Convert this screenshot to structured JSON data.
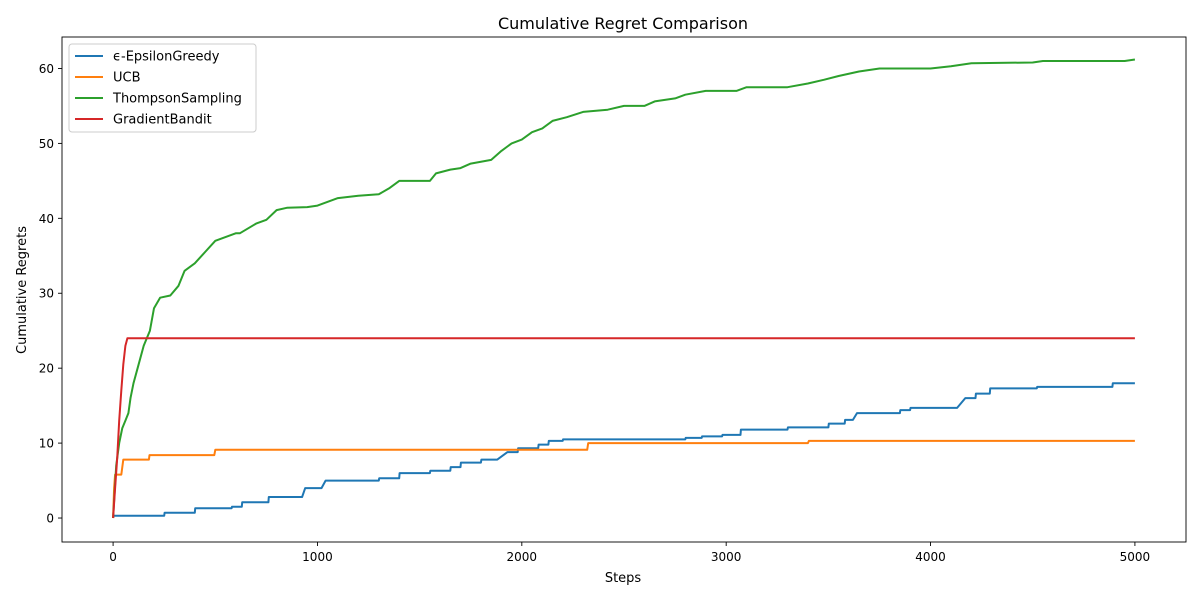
{
  "chart_data": {
    "type": "line",
    "title": "Cumulative Regret Comparison",
    "xlabel": "Steps",
    "ylabel": "Cumulative Regrets",
    "xlim": [
      -250,
      5250
    ],
    "ylim": [
      -3.2,
      64.2
    ],
    "xticks": [
      0,
      1000,
      2000,
      3000,
      4000,
      5000
    ],
    "yticks": [
      0,
      10,
      20,
      30,
      40,
      50,
      60
    ],
    "grid": false,
    "legend": "top-left",
    "series": [
      {
        "name": "ϵ-EpsilonGreedy",
        "color": "#1f77b4",
        "points": [
          [
            0,
            0
          ],
          [
            2,
            0.3
          ],
          [
            250,
            0.3
          ],
          [
            252,
            0.7
          ],
          [
            400,
            0.7
          ],
          [
            402,
            1.3
          ],
          [
            580,
            1.3
          ],
          [
            582,
            1.5
          ],
          [
            630,
            1.5
          ],
          [
            632,
            2.1
          ],
          [
            760,
            2.1
          ],
          [
            762,
            2.8
          ],
          [
            925,
            2.8
          ],
          [
            940,
            4.0
          ],
          [
            1020,
            4.0
          ],
          [
            1040,
            5.0
          ],
          [
            1300,
            5.0
          ],
          [
            1302,
            5.3
          ],
          [
            1400,
            5.3
          ],
          [
            1402,
            6.0
          ],
          [
            1550,
            6.0
          ],
          [
            1552,
            6.3
          ],
          [
            1650,
            6.3
          ],
          [
            1652,
            6.8
          ],
          [
            1700,
            6.8
          ],
          [
            1702,
            7.4
          ],
          [
            1800,
            7.4
          ],
          [
            1802,
            7.8
          ],
          [
            1880,
            7.8
          ],
          [
            1930,
            8.8
          ],
          [
            1980,
            8.8
          ],
          [
            1982,
            9.3
          ],
          [
            2080,
            9.3
          ],
          [
            2082,
            9.8
          ],
          [
            2130,
            9.8
          ],
          [
            2132,
            10.3
          ],
          [
            2200,
            10.3
          ],
          [
            2202,
            10.5
          ],
          [
            2800,
            10.5
          ],
          [
            2802,
            10.7
          ],
          [
            2880,
            10.7
          ],
          [
            2882,
            10.9
          ],
          [
            2980,
            10.9
          ],
          [
            2982,
            11.1
          ],
          [
            3070,
            11.1
          ],
          [
            3072,
            11.8
          ],
          [
            3300,
            11.8
          ],
          [
            3302,
            12.1
          ],
          [
            3500,
            12.1
          ],
          [
            3502,
            12.6
          ],
          [
            3580,
            12.6
          ],
          [
            3582,
            13.1
          ],
          [
            3620,
            13.1
          ],
          [
            3640,
            14.0
          ],
          [
            3850,
            14.0
          ],
          [
            3852,
            14.4
          ],
          [
            3900,
            14.4
          ],
          [
            3902,
            14.7
          ],
          [
            4130,
            14.7
          ],
          [
            4170,
            16.0
          ],
          [
            4220,
            16.0
          ],
          [
            4222,
            16.6
          ],
          [
            4290,
            16.6
          ],
          [
            4292,
            17.3
          ],
          [
            4520,
            17.3
          ],
          [
            4522,
            17.5
          ],
          [
            4890,
            17.5
          ],
          [
            4892,
            18.0
          ],
          [
            5000,
            18.0
          ]
        ]
      },
      {
        "name": "UCB",
        "color": "#ff7f0e",
        "points": [
          [
            0,
            0
          ],
          [
            5,
            4.0
          ],
          [
            10,
            5.8
          ],
          [
            40,
            5.8
          ],
          [
            50,
            7.8
          ],
          [
            175,
            7.8
          ],
          [
            178,
            8.4
          ],
          [
            495,
            8.4
          ],
          [
            500,
            9.1
          ],
          [
            2320,
            9.1
          ],
          [
            2325,
            10.0
          ],
          [
            3400,
            10.0
          ],
          [
            3405,
            10.3
          ],
          [
            5000,
            10.3
          ]
        ]
      },
      {
        "name": "ThompsonSampling",
        "color": "#2ca02c",
        "points": [
          [
            0,
            0
          ],
          [
            15,
            7
          ],
          [
            30,
            10
          ],
          [
            45,
            12
          ],
          [
            60,
            13
          ],
          [
            75,
            14
          ],
          [
            85,
            16
          ],
          [
            100,
            18
          ],
          [
            120,
            20
          ],
          [
            150,
            23
          ],
          [
            180,
            25
          ],
          [
            200,
            28
          ],
          [
            230,
            29.4
          ],
          [
            280,
            29.7
          ],
          [
            320,
            31
          ],
          [
            350,
            33
          ],
          [
            400,
            34
          ],
          [
            450,
            35.5
          ],
          [
            500,
            37
          ],
          [
            600,
            38
          ],
          [
            620,
            38
          ],
          [
            700,
            39.3
          ],
          [
            750,
            39.8
          ],
          [
            800,
            41.1
          ],
          [
            850,
            41.4
          ],
          [
            950,
            41.5
          ],
          [
            1000,
            41.7
          ],
          [
            1050,
            42.2
          ],
          [
            1100,
            42.7
          ],
          [
            1200,
            43
          ],
          [
            1300,
            43.2
          ],
          [
            1350,
            44
          ],
          [
            1400,
            45
          ],
          [
            1550,
            45
          ],
          [
            1580,
            46
          ],
          [
            1650,
            46.5
          ],
          [
            1700,
            46.7
          ],
          [
            1750,
            47.3
          ],
          [
            1850,
            47.8
          ],
          [
            1900,
            49
          ],
          [
            1950,
            50
          ],
          [
            2000,
            50.5
          ],
          [
            2050,
            51.5
          ],
          [
            2100,
            52
          ],
          [
            2150,
            53
          ],
          [
            2220,
            53.5
          ],
          [
            2300,
            54.2
          ],
          [
            2420,
            54.5
          ],
          [
            2500,
            55
          ],
          [
            2600,
            55
          ],
          [
            2650,
            55.6
          ],
          [
            2750,
            56
          ],
          [
            2800,
            56.5
          ],
          [
            2900,
            57
          ],
          [
            3050,
            57
          ],
          [
            3100,
            57.5
          ],
          [
            3300,
            57.5
          ],
          [
            3400,
            58
          ],
          [
            3480,
            58.5
          ],
          [
            3550,
            59
          ],
          [
            3650,
            59.6
          ],
          [
            3750,
            60
          ],
          [
            4000,
            60
          ],
          [
            4100,
            60.3
          ],
          [
            4200,
            60.7
          ],
          [
            4500,
            60.8
          ],
          [
            4550,
            61
          ],
          [
            4950,
            61
          ],
          [
            5000,
            61.2
          ]
        ]
      },
      {
        "name": "GradientBandit",
        "color": "#d62728",
        "points": [
          [
            0,
            0
          ],
          [
            10,
            4
          ],
          [
            20,
            8
          ],
          [
            30,
            13
          ],
          [
            40,
            17
          ],
          [
            50,
            20.5
          ],
          [
            60,
            23
          ],
          [
            70,
            24
          ],
          [
            5000,
            24
          ]
        ]
      }
    ]
  }
}
